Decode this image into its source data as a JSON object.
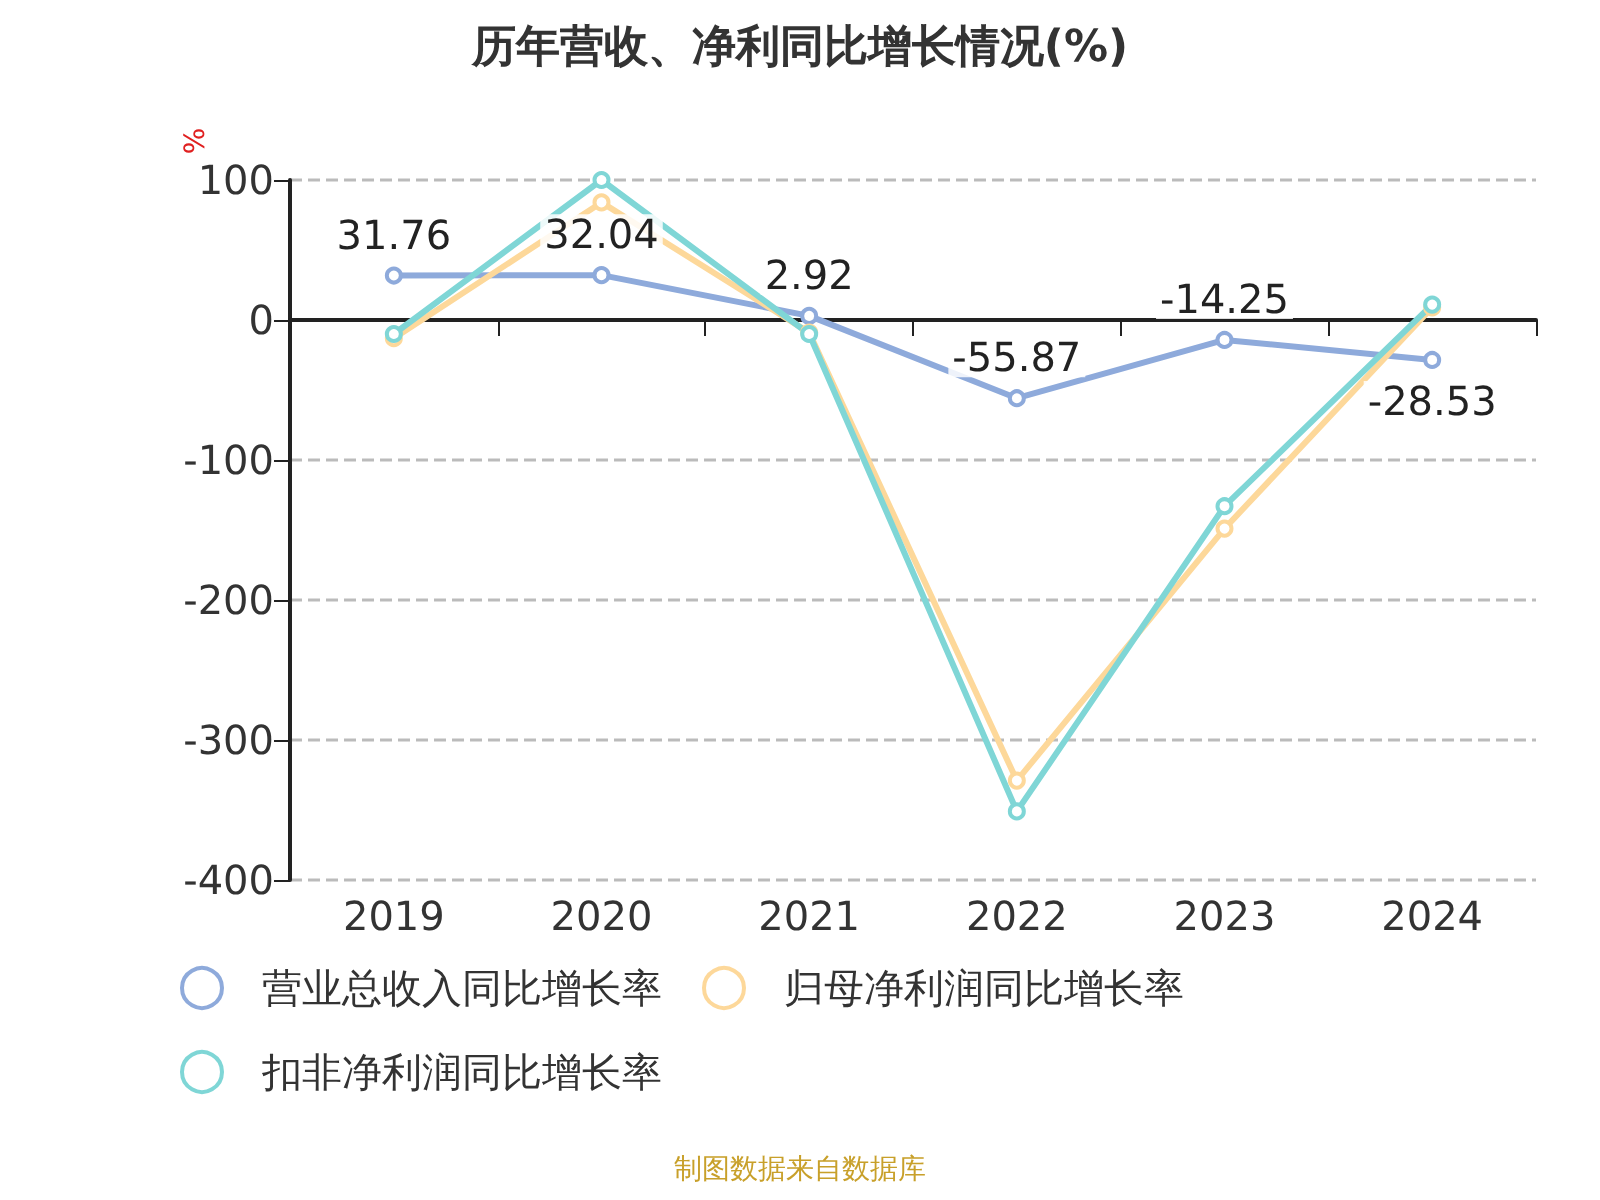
{
  "chart_data": {
    "type": "line",
    "title": "历年营收、净利同比增长情况(%)",
    "ylabel": "%",
    "categories": [
      "2019",
      "2020",
      "2021",
      "2022",
      "2023",
      "2024"
    ],
    "series": [
      {
        "name": "营业总收入同比增长率",
        "color": "#8eaadb",
        "values": [
          31.76,
          32.04,
          2.92,
          -55.87,
          -14.25,
          -28.53
        ],
        "value_labels": [
          "31.76",
          "32.04",
          "2.92",
          "-55.87",
          "-14.25",
          "-28.53"
        ]
      },
      {
        "name": "归母净利润同比增长率",
        "color": "#fdd89a",
        "values": [
          -13,
          84,
          -9,
          -329,
          -149,
          9
        ]
      },
      {
        "name": "扣非净利润同比增长率",
        "color": "#7fd6d6",
        "values": [
          -10,
          100,
          -10,
          -351,
          -133,
          11
        ]
      }
    ],
    "ylim": [
      -400,
      100
    ],
    "yticks": [
      -400,
      -300,
      -200,
      -100,
      0,
      100
    ],
    "grid": "y",
    "legend": "bottom left",
    "marker": "circle",
    "line_style": "solid",
    "annotations": [
      "制图数据来自数据库"
    ]
  }
}
